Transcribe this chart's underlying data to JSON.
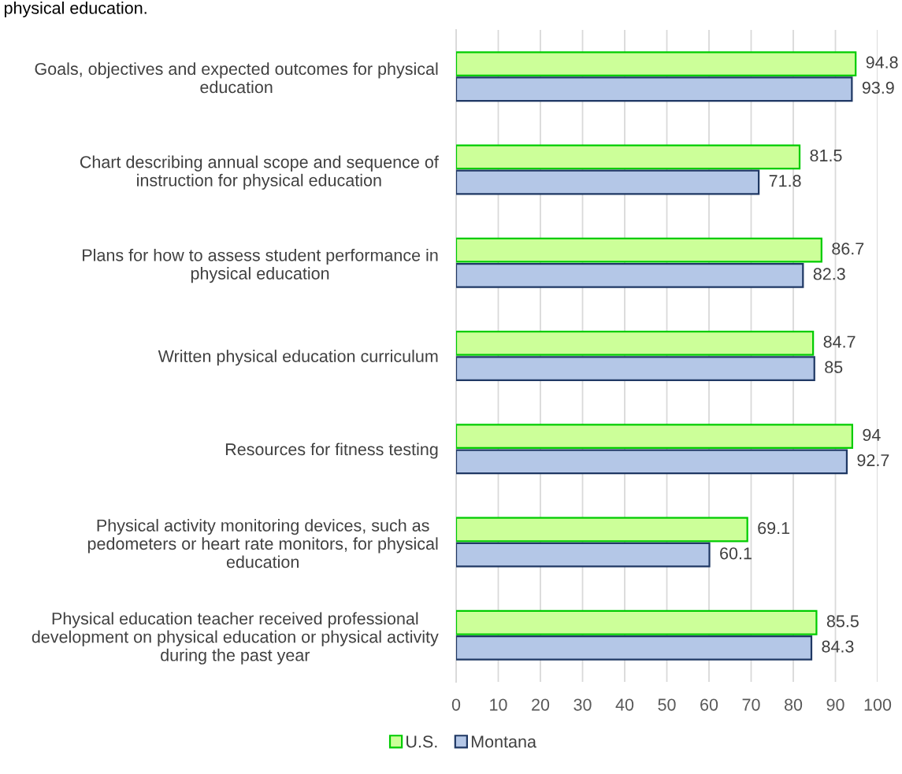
{
  "chart_data": {
    "type": "bar",
    "orientation": "horizontal",
    "title": "physical education.",
    "categories": [
      "Goals, objectives and expected outcomes for physical\neducation",
      "Chart describing annual scope and sequence of\ninstruction for physical education",
      "Plans for how to assess student performance in\nphysical education",
      "Written physical education curriculum",
      "Resources for fitness testing",
      "Physical activity monitoring devices, such as\npedometers or heart rate monitors, for physical\neducation",
      "Physical education teacher received professional\ndevelopment on physical education or physical activity\nduring the past year"
    ],
    "series": [
      {
        "name": "U.S.",
        "color": "#ccff99",
        "values": [
          94.8,
          81.5,
          86.7,
          84.7,
          94,
          69.1,
          85.5
        ]
      },
      {
        "name": "Montana",
        "color": "#b4c7e7",
        "values": [
          93.9,
          71.8,
          82.3,
          85,
          92.7,
          60.1,
          84.3
        ]
      }
    ],
    "xlim": [
      0,
      100
    ],
    "xticks": [
      0,
      10,
      20,
      30,
      40,
      50,
      60,
      70,
      80,
      90,
      100
    ],
    "grid": "x",
    "legend": "bottom",
    "data_labels": true
  }
}
